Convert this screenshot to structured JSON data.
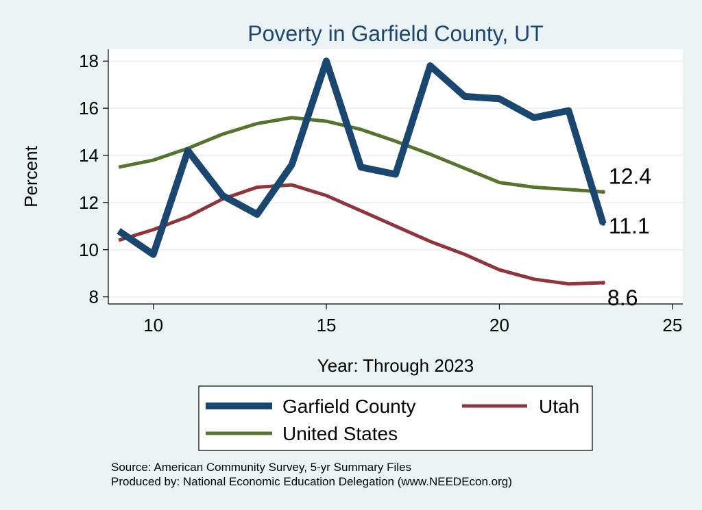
{
  "chart_data": {
    "type": "line",
    "title": "Poverty in Garfield County, UT",
    "xlabel": "Year: Through 2023",
    "ylabel": "Percent",
    "xlim": [
      8.7,
      25.3
    ],
    "ylim": [
      7.7,
      18.5
    ],
    "xticks": [
      10,
      15,
      20,
      25
    ],
    "yticks": [
      8,
      10,
      12,
      14,
      16,
      18
    ],
    "grid": true,
    "x": [
      9,
      10,
      11,
      12,
      13,
      14,
      15,
      16,
      17,
      18,
      19,
      20,
      21,
      22,
      23
    ],
    "series": [
      {
        "name": "Garfield County",
        "color": "#1a476f",
        "width": 10,
        "values": [
          10.8,
          9.8,
          14.2,
          12.3,
          11.5,
          13.6,
          18.0,
          13.5,
          13.2,
          17.8,
          16.5,
          16.4,
          15.6,
          15.9,
          11.1
        ],
        "end_label": "11.1"
      },
      {
        "name": "Utah",
        "color": "#90353b",
        "width": 5,
        "values": [
          10.4,
          10.85,
          11.4,
          12.15,
          12.65,
          12.75,
          12.3,
          11.65,
          11.0,
          10.35,
          9.8,
          9.15,
          8.75,
          8.55,
          8.6
        ],
        "end_label": "8.6"
      },
      {
        "name": "United States",
        "color": "#55752f",
        "width": 5,
        "values": [
          13.5,
          13.8,
          14.3,
          14.9,
          15.35,
          15.6,
          15.45,
          15.1,
          14.6,
          14.05,
          13.45,
          12.85,
          12.65,
          12.55,
          12.45
        ],
        "end_label": "12.4"
      }
    ],
    "legend_position": "bottom",
    "source_note": "Source: American Community Survey, 5-yr Summary Files",
    "producer_note": "Produced by: National Economic Education Delegation (www.NEEDEcon.org)"
  }
}
